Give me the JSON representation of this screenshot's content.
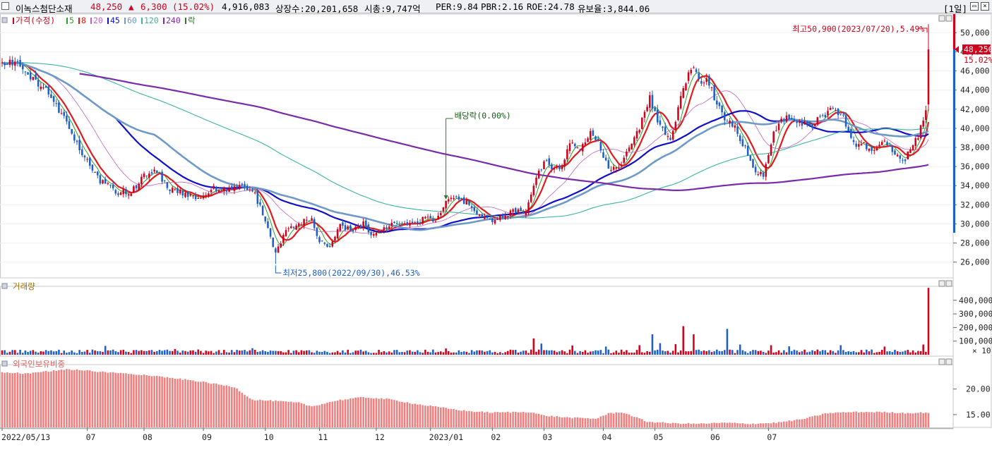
{
  "header": {
    "stock_name": "이녹스첨단소재",
    "price": "48,250",
    "change_arrow": "▲",
    "change": "6,300",
    "change_rate": "(15.02%)",
    "volume": "4,916,083",
    "listed_shares": "상장수:20,201,658",
    "market_cap": "시총:9,747억",
    "per": "PER:9.84",
    "pbr": "PBR:2.16",
    "roe": "ROE:24.78",
    "reserve_ratio": "유보율:3,844.06",
    "period": "[1일]"
  },
  "colors": {
    "up": "#d0021b",
    "down": "#1e5fc8",
    "ma5": "#2ca02c",
    "ma8": "#e31a1c",
    "ma20": "#c060c0",
    "ma45": "#1010c8",
    "ma60": "#6e9ac8",
    "ma120": "#3cb4a0",
    "ma240": "#7a2ca8",
    "foreign_bar": "#f08080"
  },
  "chart_data": [
    {
      "type": "candlestick",
      "panel": "price",
      "legend": [
        "가격(수정)",
        "5",
        "8",
        "20",
        "45",
        "60",
        "120",
        "240",
        "락"
      ],
      "x_ticks": [
        "2022/05/13",
        "07",
        "08",
        "09",
        "10",
        "11",
        "12",
        "2023/01",
        "02",
        "03",
        "04",
        "05",
        "06",
        "07"
      ],
      "y_ticks": [
        26000,
        28000,
        30000,
        32000,
        34000,
        36000,
        38000,
        40000,
        42000,
        44000,
        46000,
        48000,
        50000
      ],
      "y_tick_labels": [
        "26,000",
        "28,000",
        "30,000",
        "32,000",
        "34,000",
        "36,000",
        "38,000",
        "40,000",
        "42,000",
        "44,000",
        "46,000",
        "48,000",
        "50,000"
      ],
      "ylim": [
        24500,
        51800
      ],
      "anchors": [
        [
          0,
          47000
        ],
        [
          8,
          46500
        ],
        [
          14,
          44500
        ],
        [
          18,
          43800
        ],
        [
          25,
          40500
        ],
        [
          31,
          37500
        ],
        [
          38,
          34500
        ],
        [
          45,
          33300
        ],
        [
          50,
          33300
        ],
        [
          55,
          35000
        ],
        [
          60,
          35500
        ],
        [
          64,
          33800
        ],
        [
          70,
          33200
        ],
        [
          76,
          32600
        ],
        [
          82,
          33800
        ],
        [
          88,
          33500
        ],
        [
          94,
          34000
        ],
        [
          98,
          33000
        ],
        [
          102,
          30500
        ],
        [
          106,
          26800
        ],
        [
          110,
          29500
        ],
        [
          115,
          30000
        ],
        [
          120,
          30600
        ],
        [
          123,
          28200
        ],
        [
          127,
          27600
        ],
        [
          131,
          29800
        ],
        [
          136,
          29400
        ],
        [
          140,
          30000
        ],
        [
          144,
          28800
        ],
        [
          149,
          29700
        ],
        [
          154,
          30200
        ],
        [
          159,
          29900
        ],
        [
          164,
          30600
        ],
        [
          168,
          30400
        ],
        [
          172,
          32300
        ],
        [
          176,
          32800
        ],
        [
          181,
          32000
        ],
        [
          185,
          30700
        ],
        [
          190,
          30300
        ],
        [
          195,
          31000
        ],
        [
          200,
          31500
        ],
        [
          203,
          31000
        ],
        [
          206,
          34000
        ],
        [
          210,
          36500
        ],
        [
          214,
          35800
        ],
        [
          217,
          36200
        ],
        [
          220,
          38800
        ],
        [
          224,
          37800
        ],
        [
          228,
          39500
        ],
        [
          231,
          38500
        ],
        [
          235,
          36000
        ],
        [
          239,
          35800
        ],
        [
          243,
          38200
        ],
        [
          247,
          40000
        ],
        [
          251,
          43200
        ],
        [
          255,
          40200
        ],
        [
          259,
          38600
        ],
        [
          263,
          43000
        ],
        [
          267,
          46500
        ],
        [
          270,
          45200
        ],
        [
          274,
          44800
        ],
        [
          277,
          42500
        ],
        [
          281,
          40800
        ],
        [
          284,
          40000
        ],
        [
          288,
          37800
        ],
        [
          292,
          35300
        ],
        [
          295,
          35100
        ],
        [
          299,
          39800
        ],
        [
          304,
          41300
        ],
        [
          309,
          40500
        ],
        [
          314,
          40400
        ],
        [
          318,
          41200
        ],
        [
          322,
          42300
        ],
        [
          326,
          41000
        ],
        [
          330,
          38500
        ],
        [
          334,
          38200
        ],
        [
          338,
          37900
        ],
        [
          342,
          38400
        ],
        [
          346,
          37300
        ],
        [
          349,
          36300
        ],
        [
          352,
          38000
        ],
        [
          355,
          39200
        ],
        [
          357,
          41000
        ],
        [
          358,
          41950
        ],
        [
          359,
          48250
        ]
      ],
      "volatility_pct": 2.4,
      "seed": 20230720,
      "ma_periods": [
        5,
        8,
        20,
        45,
        60,
        120,
        240
      ],
      "annotations": {
        "high": "최고50,900(2023/07/20),5.49%",
        "low": "최저25,800(2022/09/30),46.53%",
        "dividend": "배당락(0.00%)",
        "current_price_tag": "48,250",
        "current_rate_tag": "15.02%"
      },
      "high_value": 50900,
      "low_value": 25800,
      "dividend_index": 172
    },
    {
      "type": "bar",
      "panel": "volume",
      "title": "거래량",
      "y_ticks": [
        100000,
        200000,
        300000,
        400000
      ],
      "y_tick_labels": [
        "100,000",
        "200,000",
        "300,000",
        "400,000"
      ],
      "unit_label": "× 10",
      "ylim": [
        0,
        492000
      ],
      "base_volume": 25000,
      "spikes": [
        [
          0,
          32000
        ],
        [
          35,
          38000
        ],
        [
          40,
          65000
        ],
        [
          67,
          42000
        ],
        [
          97,
          48000
        ],
        [
          146,
          36000
        ],
        [
          172,
          46000
        ],
        [
          206,
          120000
        ],
        [
          209,
          82000
        ],
        [
          221,
          68000
        ],
        [
          234,
          60000
        ],
        [
          247,
          70000
        ],
        [
          252,
          150000
        ],
        [
          255,
          85000
        ],
        [
          261,
          78000
        ],
        [
          264,
          210000
        ],
        [
          268,
          150000
        ],
        [
          281,
          190000
        ],
        [
          286,
          75000
        ],
        [
          298,
          70000
        ],
        [
          305,
          62000
        ],
        [
          325,
          70000
        ],
        [
          342,
          60000
        ],
        [
          357,
          75000
        ],
        [
          359,
          491600
        ]
      ]
    },
    {
      "type": "bar",
      "panel": "foreign-ownership",
      "title": "외국인보유비중",
      "y_ticks": [
        15,
        20
      ],
      "y_tick_labels": [
        "15.00",
        "20.00"
      ],
      "ylim": [
        12.5,
        24.5
      ],
      "anchors": [
        [
          0,
          23.3
        ],
        [
          10,
          23.0
        ],
        [
          20,
          23.6
        ],
        [
          25,
          23.9
        ],
        [
          30,
          23.7
        ],
        [
          40,
          23.3
        ],
        [
          55,
          22.8
        ],
        [
          75,
          21.6
        ],
        [
          90,
          20.4
        ],
        [
          97,
          17.9
        ],
        [
          105,
          17.7
        ],
        [
          115,
          17.3
        ],
        [
          120,
          16.6
        ],
        [
          130,
          17.8
        ],
        [
          140,
          18.4
        ],
        [
          150,
          18.0
        ],
        [
          160,
          17.1
        ],
        [
          170,
          16.4
        ],
        [
          180,
          15.7
        ],
        [
          190,
          15.4
        ],
        [
          200,
          15.5
        ],
        [
          205,
          15.5
        ],
        [
          210,
          14.8
        ],
        [
          220,
          14.4
        ],
        [
          230,
          14.2
        ],
        [
          235,
          15.2
        ],
        [
          240,
          15.5
        ],
        [
          245,
          14.6
        ],
        [
          250,
          13.6
        ],
        [
          260,
          13.3
        ],
        [
          270,
          13.2
        ],
        [
          280,
          13.4
        ],
        [
          290,
          13.2
        ],
        [
          300,
          13.4
        ],
        [
          310,
          14.1
        ],
        [
          320,
          15.3
        ],
        [
          330,
          15.5
        ],
        [
          340,
          15.5
        ],
        [
          350,
          15.3
        ],
        [
          359,
          15.4
        ]
      ]
    }
  ]
}
